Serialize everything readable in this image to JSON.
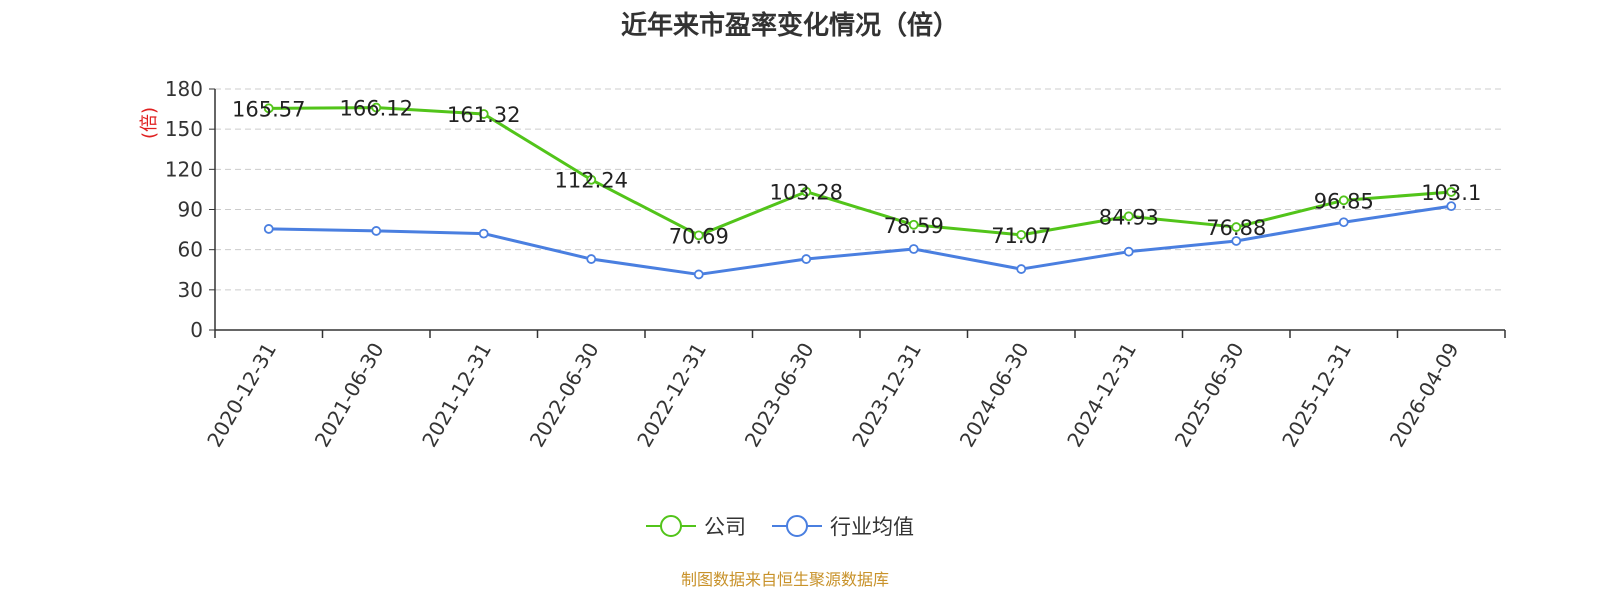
{
  "chart_data": {
    "type": "line",
    "title": "近年来市盈率变化情况（倍）",
    "ylabel": "(倍)",
    "ylim": [
      0,
      180
    ],
    "yticks": [
      0,
      30,
      60,
      90,
      120,
      150,
      180
    ],
    "grid": true,
    "legend_position": "bottom",
    "categories": [
      "2020-12-31",
      "2021-06-30",
      "2021-12-31",
      "2022-06-30",
      "2022-12-31",
      "2023-06-30",
      "2023-12-31",
      "2024-06-30",
      "2024-12-31",
      "2025-06-30",
      "2025-12-31",
      "2026-04-09"
    ],
    "series": [
      {
        "name": "公司",
        "color": "#52c41a",
        "values": [
          165.57,
          166.12,
          161.32,
          112.24,
          70.69,
          103.28,
          78.59,
          71.07,
          84.93,
          76.88,
          96.85,
          103.1
        ],
        "labels": [
          "165.57",
          "166.12",
          "161.32",
          "112.24",
          "70.69",
          "103.28",
          "78.59",
          "71.07",
          "84.93",
          "76.88",
          "96.85",
          "103.1"
        ]
      },
      {
        "name": "行业均值",
        "color": "#4a7fe0",
        "values": [
          75.5,
          74,
          72,
          53,
          41.5,
          53,
          60.5,
          45.5,
          58.5,
          66.5,
          80.5,
          92.5
        ]
      }
    ],
    "source": "制图数据来自恒生聚源数据库",
    "source_color": "#c8922a",
    "ylabel_color": "#e02020"
  }
}
